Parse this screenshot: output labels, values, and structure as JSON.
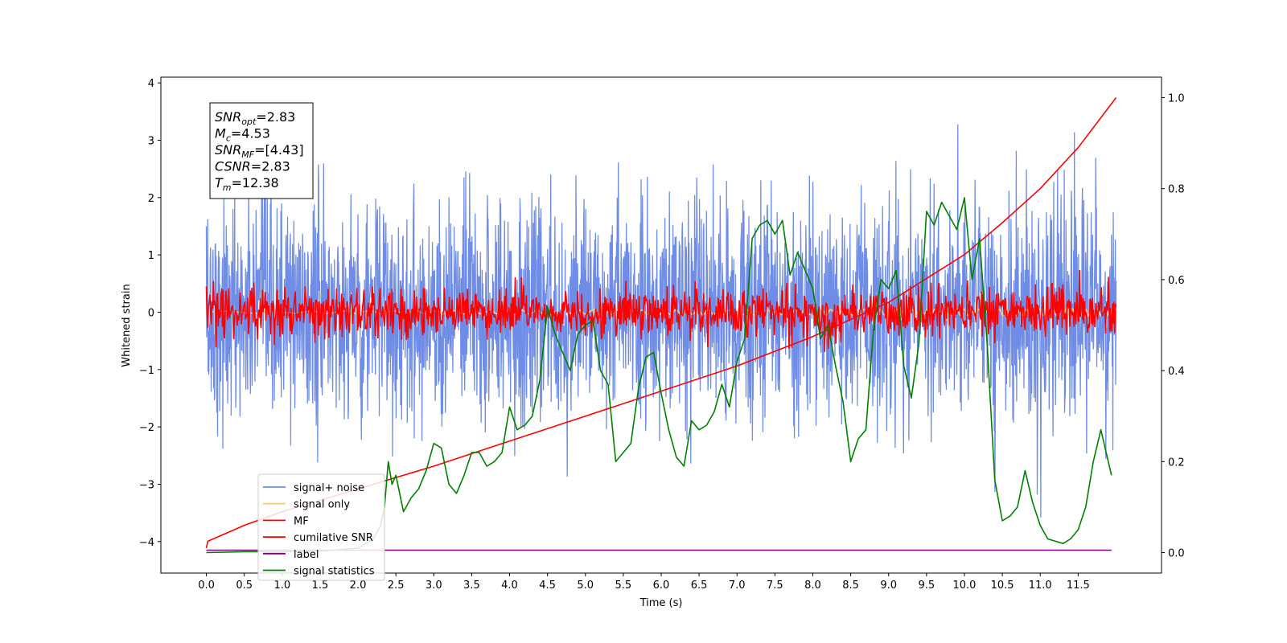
{
  "chart_data": {
    "type": "line",
    "xlabel": "Time (s)",
    "ylabel": "Whitened strain",
    "xlim": [
      -0.6,
      12.6
    ],
    "ylim": [
      -4.55,
      4.1
    ],
    "y2lim": [
      -0.045,
      1.045
    ],
    "x_ticks": [
      "0.0",
      "0.5",
      "1.0",
      "1.5",
      "2.0",
      "2.5",
      "3.0",
      "3.5",
      "4.0",
      "4.5",
      "5.0",
      "5.5",
      "6.0",
      "6.5",
      "7.0",
      "7.5",
      "8.0",
      "8.5",
      "9.0",
      "9.5",
      "10.0",
      "10.5",
      "11.0",
      "11.5"
    ],
    "y_ticks": [
      "−4",
      "−3",
      "−2",
      "−1",
      "0",
      "1",
      "2",
      "3",
      "4"
    ],
    "y2_ticks": [
      "0.0",
      "0.2",
      "0.4",
      "0.6",
      "0.8",
      "1.0"
    ],
    "annotation": [
      {
        "base": "SNR",
        "sub": "opt",
        "rest": "=2.83"
      },
      {
        "base": "M",
        "sub": "c",
        "rest": "=4.53"
      },
      {
        "base": "SNR",
        "sub": "MF",
        "rest": "=[4.43]"
      },
      {
        "base": "CSNR",
        "sub": "",
        "rest": "=2.83"
      },
      {
        "base": "T",
        "sub": "m",
        "rest": "=12.38"
      }
    ],
    "legend_position": "lower-left",
    "series": [
      {
        "name": "signal+ noise",
        "color": "#6f8de6",
        "axis": "left",
        "noise_std": 0.95,
        "x_start": 0.0,
        "x_end": 12.0
      },
      {
        "name": "signal only",
        "color": "#ffc97a",
        "axis": "left",
        "amplitude": 0.05,
        "x_start": 0.0,
        "x_end": 12.0
      },
      {
        "name": "MF",
        "color": "#ff0000",
        "axis": "left",
        "noise_std": 0.22,
        "x_start": 0.0,
        "x_end": 12.0
      },
      {
        "name": "cumilative SNR",
        "color": "#ff0000",
        "axis": "right",
        "x": [
          0.0,
          0.02,
          0.5,
          1.0,
          2.0,
          3.0,
          4.0,
          5.0,
          6.0,
          7.0,
          8.0,
          9.0,
          10.0,
          10.5,
          11.0,
          11.5,
          12.0
        ],
        "values": [
          0.01,
          0.025,
          0.06,
          0.09,
          0.14,
          0.19,
          0.245,
          0.3,
          0.355,
          0.41,
          0.475,
          0.55,
          0.655,
          0.725,
          0.8,
          0.89,
          1.0
        ]
      },
      {
        "name": "label",
        "color": "#800080",
        "axis": "left",
        "x": [
          0.0,
          11.94
        ],
        "values": [
          -4.15,
          -4.15
        ]
      },
      {
        "name": "signal statistics",
        "color": "#008000",
        "axis": "right",
        "x": [
          0.0,
          0.5,
          1.0,
          1.5,
          2.0,
          2.2,
          2.3,
          2.35,
          2.4,
          2.45,
          2.5,
          2.6,
          2.7,
          2.8,
          2.9,
          3.0,
          3.1,
          3.2,
          3.3,
          3.4,
          3.5,
          3.6,
          3.7,
          3.8,
          3.9,
          4.0,
          4.1,
          4.2,
          4.3,
          4.4,
          4.5,
          4.6,
          4.7,
          4.8,
          4.9,
          5.0,
          5.1,
          5.2,
          5.3,
          5.4,
          5.5,
          5.6,
          5.7,
          5.8,
          5.9,
          6.0,
          6.1,
          6.2,
          6.3,
          6.4,
          6.5,
          6.6,
          6.7,
          6.8,
          6.9,
          7.0,
          7.1,
          7.2,
          7.3,
          7.4,
          7.5,
          7.6,
          7.7,
          7.8,
          7.9,
          8.0,
          8.1,
          8.2,
          8.3,
          8.4,
          8.5,
          8.6,
          8.7,
          8.8,
          8.9,
          9.0,
          9.1,
          9.2,
          9.3,
          9.4,
          9.5,
          9.6,
          9.7,
          9.8,
          9.9,
          10.0,
          10.1,
          10.2,
          10.3,
          10.4,
          10.5,
          10.6,
          10.7,
          10.8,
          10.9,
          11.0,
          11.1,
          11.2,
          11.3,
          11.4,
          11.5,
          11.6,
          11.7,
          11.8,
          11.94
        ],
        "values": [
          0.0,
          0.002,
          0.002,
          0.003,
          0.01,
          0.03,
          0.06,
          0.1,
          0.2,
          0.15,
          0.17,
          0.09,
          0.12,
          0.14,
          0.18,
          0.24,
          0.23,
          0.15,
          0.13,
          0.17,
          0.22,
          0.22,
          0.19,
          0.2,
          0.22,
          0.32,
          0.27,
          0.28,
          0.3,
          0.38,
          0.54,
          0.48,
          0.44,
          0.4,
          0.48,
          0.5,
          0.51,
          0.4,
          0.37,
          0.2,
          0.22,
          0.24,
          0.36,
          0.43,
          0.44,
          0.35,
          0.27,
          0.21,
          0.19,
          0.29,
          0.27,
          0.28,
          0.31,
          0.37,
          0.32,
          0.42,
          0.47,
          0.69,
          0.72,
          0.73,
          0.7,
          0.73,
          0.61,
          0.66,
          0.62,
          0.58,
          0.47,
          0.5,
          0.41,
          0.33,
          0.2,
          0.25,
          0.27,
          0.49,
          0.6,
          0.58,
          0.62,
          0.41,
          0.34,
          0.46,
          0.75,
          0.72,
          0.77,
          0.74,
          0.71,
          0.78,
          0.6,
          0.69,
          0.46,
          0.16,
          0.07,
          0.08,
          0.1,
          0.18,
          0.11,
          0.06,
          0.03,
          0.025,
          0.02,
          0.03,
          0.05,
          0.1,
          0.2,
          0.27,
          0.17
        ]
      }
    ]
  }
}
